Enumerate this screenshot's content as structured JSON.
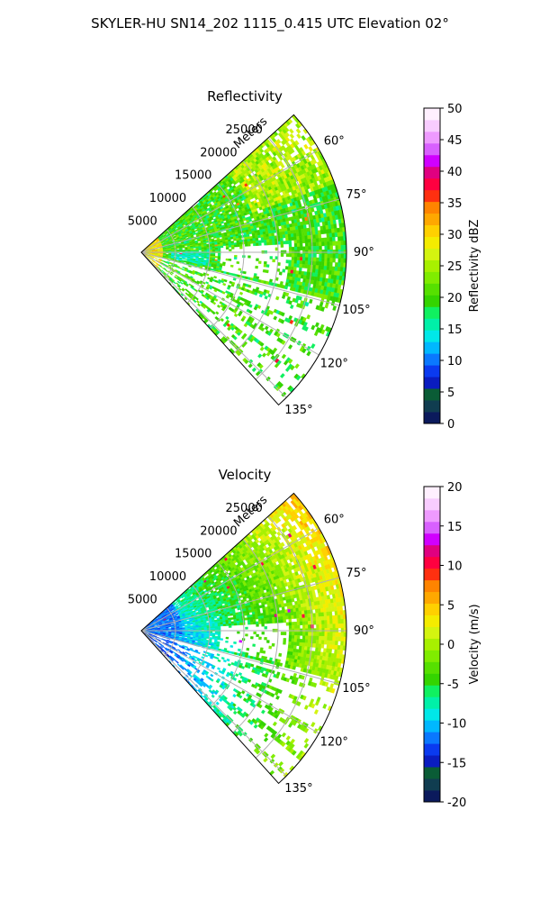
{
  "figure": {
    "suptitle": "SKYLER-HU  SN14_202  1115_0.415 UTC Elevation 02°"
  },
  "chart_data": [
    {
      "type": "heatmap",
      "projection": "polar-sector",
      "title": "Reflectivity",
      "range_label": "Meters",
      "range_ticks": [
        "5000",
        "10000",
        "15000",
        "20000",
        "25000"
      ],
      "range_values": [
        5000,
        10000,
        15000,
        20000,
        25000
      ],
      "range_max": 30000,
      "azimuth_range": [
        48,
        138
      ],
      "azimuth_ticks": [
        "60°",
        "75°",
        "90°",
        "105°",
        "120°",
        "135°"
      ],
      "azimuth_values": [
        60,
        75,
        90,
        105,
        120,
        135
      ],
      "grid": true,
      "colorbar": {
        "label": "Reflectivity dBZ",
        "min": 0,
        "max": 50,
        "ticks": [
          "0",
          "5",
          "10",
          "15",
          "20",
          "25",
          "30",
          "35",
          "40",
          "45",
          "50"
        ],
        "tick_values": [
          0,
          5,
          10,
          15,
          20,
          25,
          30,
          35,
          40,
          45,
          50
        ],
        "colors": [
          "#0b1a5c",
          "#103d50",
          "#0a5c36",
          "#0a1cc0",
          "#0a3af0",
          "#0a78ff",
          "#00b8ff",
          "#00e8e8",
          "#00f0a8",
          "#10f060",
          "#34d400",
          "#56e000",
          "#80ec00",
          "#a8f000",
          "#d4f410",
          "#f4ec00",
          "#ffd000",
          "#ffa800",
          "#ff8400",
          "#ff3010",
          "#ff0040",
          "#e00080",
          "#d000ff",
          "#d860ff",
          "#ee9aff",
          "#f8ccff",
          "#fff0ff"
        ]
      }
    },
    {
      "type": "heatmap",
      "projection": "polar-sector",
      "title": "Velocity",
      "range_label": "Meters",
      "range_ticks": [
        "5000",
        "10000",
        "15000",
        "20000",
        "25000"
      ],
      "range_values": [
        5000,
        10000,
        15000,
        20000,
        25000
      ],
      "range_max": 30000,
      "azimuth_range": [
        48,
        138
      ],
      "azimuth_ticks": [
        "60°",
        "75°",
        "90°",
        "105°",
        "120°",
        "135°"
      ],
      "azimuth_values": [
        60,
        75,
        90,
        105,
        120,
        135
      ],
      "grid": true,
      "colorbar": {
        "label": "Velocity (m/s)",
        "min": -20,
        "max": 20,
        "ticks": [
          "-20",
          "-15",
          "-10",
          "-5",
          "0",
          "5",
          "10",
          "15",
          "20"
        ],
        "tick_values": [
          -20,
          -15,
          -10,
          -5,
          0,
          5,
          10,
          15,
          20
        ],
        "colors": [
          "#0b1a5c",
          "#103d50",
          "#0a5c36",
          "#0a1cc0",
          "#0a3af0",
          "#0a78ff",
          "#00b8ff",
          "#00e8e8",
          "#00f0a8",
          "#10f060",
          "#34d400",
          "#56e000",
          "#80ec00",
          "#a8f000",
          "#d4f410",
          "#f4ec00",
          "#ffd000",
          "#ffa800",
          "#ff8400",
          "#ff3010",
          "#ff0040",
          "#e00080",
          "#d000ff",
          "#d860ff",
          "#ee9aff",
          "#f8ccff",
          "#fff0ff"
        ]
      }
    }
  ]
}
